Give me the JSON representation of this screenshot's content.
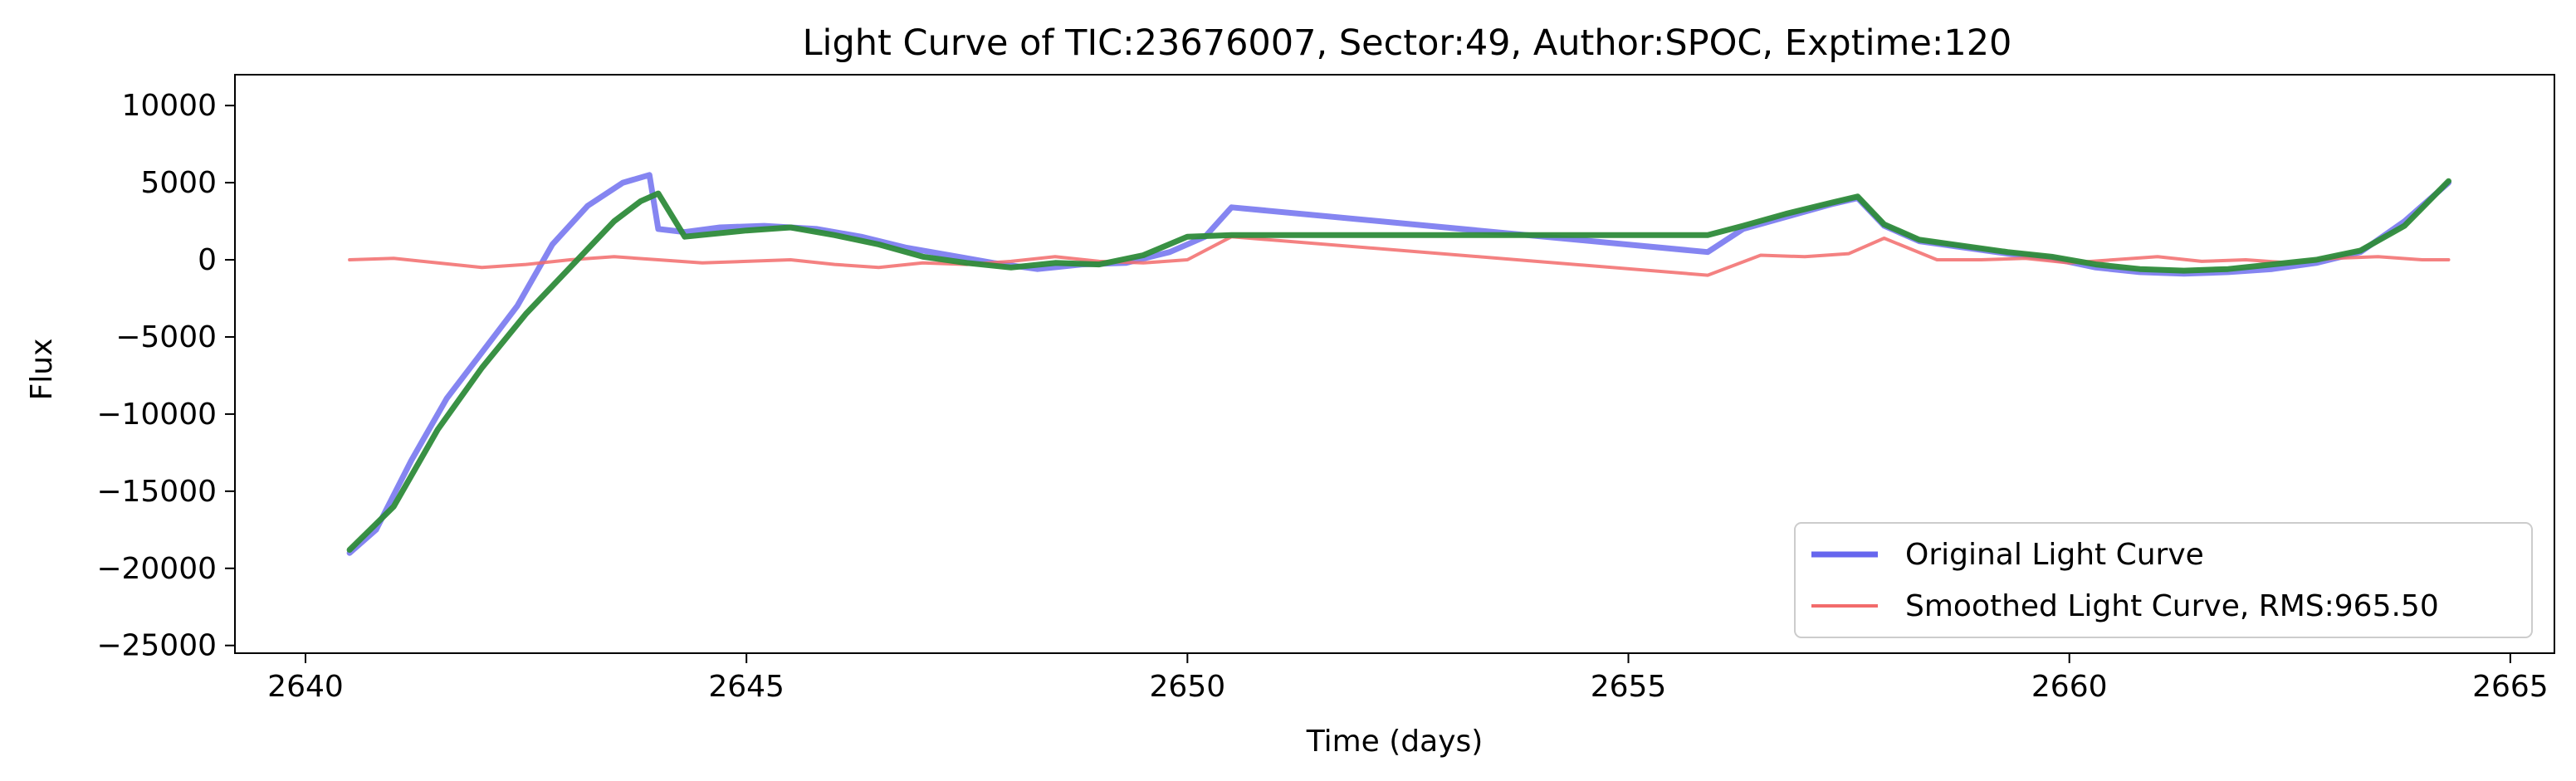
{
  "chart_data": {
    "type": "line",
    "title": "Light Curve of TIC:23676007, Sector:49, Author:SPOC, Exptime:120",
    "xlabel": "Time (days)",
    "ylabel": "Flux",
    "xlim": [
      2639.2,
      2665.5
    ],
    "ylim": [
      -25500,
      12000
    ],
    "x_ticks": [
      2640,
      2645,
      2650,
      2655,
      2660,
      2665
    ],
    "y_ticks": [
      10000,
      5000,
      0,
      -5000,
      -10000,
      -15000,
      -20000,
      -25000
    ],
    "grid": false,
    "legend_position": "lower-right",
    "colors": {
      "original": "#6666ee",
      "smoothed": "#f26b6b",
      "trend": "#2e8b3a",
      "overlap": "#9b3a6e"
    },
    "series": [
      {
        "name": "Original Light Curve",
        "color": "#6666ee",
        "x": [
          2640.5,
          2640.8,
          2641.2,
          2641.6,
          2642.0,
          2642.4,
          2642.8,
          2643.2,
          2643.6,
          2643.9,
          2644.0,
          2644.3,
          2644.7,
          2645.2,
          2645.8,
          2646.3,
          2646.8,
          2647.3,
          2647.8,
          2648.3,
          2648.8,
          2649.3,
          2649.8,
          2650.2,
          2650.5,
          2655.9,
          2656.3,
          2656.8,
          2657.3,
          2657.6,
          2657.9,
          2658.3,
          2658.8,
          2659.3,
          2659.8,
          2660.3,
          2660.8,
          2661.3,
          2661.8,
          2662.3,
          2662.8,
          2663.3,
          2663.8,
          2664.3
        ],
        "y": [
          -19000,
          -17500,
          -13000,
          -9000,
          -6000,
          -3000,
          1000,
          3500,
          5000,
          5500,
          2000,
          1800,
          2100,
          2200,
          2000,
          1500,
          800,
          300,
          -200,
          -600,
          -300,
          -200,
          500,
          1500,
          3400,
          500,
          2000,
          2800,
          3600,
          4000,
          2200,
          1200,
          800,
          400,
          100,
          -500,
          -800,
          -900,
          -800,
          -600,
          -200,
          500,
          2500,
          5000
        ]
      },
      {
        "name": "Smoothed Light Curve, RMS:965.50",
        "color": "#f26b6b",
        "x": [
          2640.5,
          2641.0,
          2641.5,
          2642.0,
          2642.5,
          2643.0,
          2643.5,
          2644.0,
          2644.5,
          2645.0,
          2645.5,
          2646.0,
          2646.5,
          2647.0,
          2647.5,
          2648.0,
          2648.5,
          2649.0,
          2649.5,
          2650.0,
          2650.5,
          2655.9,
          2656.5,
          2657.0,
          2657.5,
          2657.9,
          2658.5,
          2659.0,
          2659.5,
          2660.0,
          2660.5,
          2661.0,
          2661.5,
          2662.0,
          2662.5,
          2663.0,
          2663.5,
          2664.0,
          2664.3
        ],
        "y": [
          0,
          100,
          -200,
          -500,
          -300,
          0,
          200,
          0,
          -200,
          -100,
          0,
          -300,
          -500,
          -200,
          -300,
          -100,
          200,
          -100,
          -200,
          0,
          1500,
          -1000,
          300,
          200,
          400,
          1400,
          0,
          0,
          100,
          -200,
          0,
          200,
          -100,
          0,
          -200,
          100,
          200,
          0,
          0
        ]
      },
      {
        "name": "",
        "color": "#2e8b3a",
        "x": [
          2640.5,
          2641.0,
          2641.5,
          2642.0,
          2642.5,
          2643.0,
          2643.5,
          2643.8,
          2644.0,
          2644.3,
          2645.0,
          2645.5,
          2646.0,
          2646.5,
          2647.0,
          2647.5,
          2648.0,
          2648.5,
          2649.0,
          2649.5,
          2650.0,
          2650.5,
          2655.9,
          2656.3,
          2656.8,
          2657.3,
          2657.6,
          2657.9,
          2658.3,
          2658.8,
          2659.3,
          2659.8,
          2660.3,
          2660.8,
          2661.3,
          2661.8,
          2662.3,
          2662.8,
          2663.3,
          2663.8,
          2664.3
        ],
        "y": [
          -18800,
          -16000,
          -11000,
          -7000,
          -3500,
          -500,
          2500,
          3800,
          4300,
          1500,
          1900,
          2100,
          1600,
          1000,
          200,
          -200,
          -500,
          -200,
          -300,
          300,
          1500,
          1600,
          1600,
          2200,
          3000,
          3700,
          4100,
          2300,
          1300,
          900,
          500,
          200,
          -300,
          -600,
          -700,
          -600,
          -300,
          0,
          600,
          2200,
          5100
        ]
      }
    ],
    "legend": [
      {
        "label": "Original Light Curve",
        "color": "#6666ee"
      },
      {
        "label": "Smoothed Light Curve, RMS:965.50",
        "color": "#f26b6b"
      }
    ]
  }
}
